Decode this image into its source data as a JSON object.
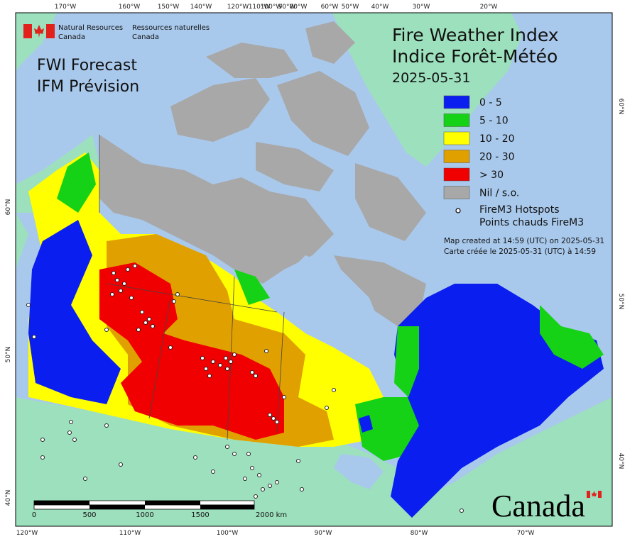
{
  "header": {
    "agency_en": [
      "Natural Resources",
      "Canada"
    ],
    "agency_fr": [
      "Ressources naturelles",
      "Canada"
    ]
  },
  "product": [
    "FWI Forecast",
    "IFM Prévision"
  ],
  "title": [
    "Fire Weather Index",
    "Indice Forêt-Météo"
  ],
  "date": "2025-05-31",
  "legend": {
    "items": [
      {
        "label": "0 - 5",
        "color": "#0a1ef0"
      },
      {
        "label": "5 - 10",
        "color": "#16d216"
      },
      {
        "label": "10 - 20",
        "color": "#ffff00"
      },
      {
        "label": "20 - 30",
        "color": "#e0a000"
      },
      {
        "label": "> 30",
        "color": "#f00000"
      },
      {
        "label": "Nil / s.o.",
        "color": "#a8a8a8"
      }
    ],
    "hotspots": [
      "FireM3 Hotspots",
      "Points chauds FireM3"
    ]
  },
  "credit": [
    "Map created at 14:59 (UTC) on 2025-05-31",
    "Carte créée le 2025-05-31 (UTC) à 14:59"
  ],
  "scale": [
    "0",
    "500",
    "1000",
    "1500",
    "2000  km"
  ],
  "graticule": {
    "top": [
      "170°W",
      "160°W",
      "150°W",
      "140°W",
      "120°W",
      "110°W",
      "100°W",
      "90°W",
      "80°W",
      "60°W",
      "50°W",
      "40°W",
      "30°W",
      "20°W"
    ],
    "bottom": [
      "120°W",
      "110°W",
      "100°W",
      "90°W",
      "80°W",
      "70°W"
    ],
    "left": [
      "60°N",
      "50°N",
      "40°N"
    ],
    "right": [
      "60°N",
      "50°N",
      "40°N"
    ]
  },
  "wordmark": "Canada"
}
